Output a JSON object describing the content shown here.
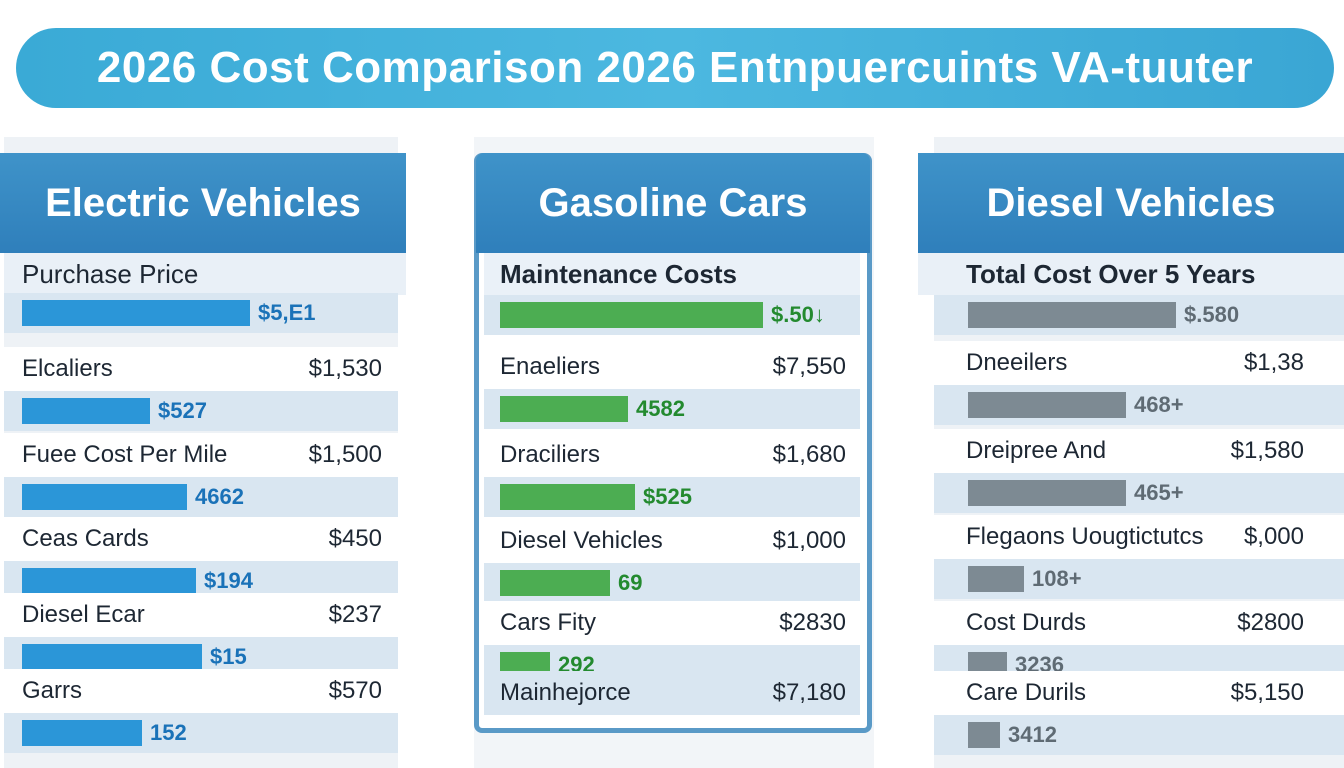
{
  "title": "2026 Cost Comparison 2026 Entnpuercuints VA-tuuter",
  "colors": {
    "ev_bar": "#2b96d8",
    "ev_text": "#1a72b8",
    "gas_bar": "#4cad52",
    "gas_text": "#238a2f",
    "diesel_bar": "#7d8a93",
    "diesel_text": "#5f6b74"
  },
  "chart_data": [
    {
      "type": "bar",
      "title": "Electric Vehicles",
      "subtitle": "Purchase Price",
      "top_bar": {
        "value_label": "$5,E1",
        "fraction": 0.8
      },
      "rows": [
        {
          "label": "Elcaliers",
          "amount": "$1,530",
          "bar_label": "$527",
          "fraction": 0.45
        },
        {
          "label": "Fuee Cost Per Mile",
          "amount": "$1,500",
          "bar_label": "4662",
          "fraction": 0.58
        },
        {
          "label": "Ceas Cards",
          "amount": "$450",
          "bar_label": "$194",
          "fraction": 0.61
        },
        {
          "label": "Diesel Ecar",
          "amount": "$237",
          "bar_label": "$15",
          "fraction": 0.63
        },
        {
          "label": "Garrs",
          "amount": "$570",
          "bar_label": "152",
          "fraction": 0.42
        }
      ]
    },
    {
      "type": "bar",
      "title": "Gasoline Cars",
      "subtitle": "Maintenance Costs",
      "top_bar": {
        "value_label": "$.50↓",
        "fraction": 0.74
      },
      "rows": [
        {
          "label": "Enaeliers",
          "amount": "$7,550",
          "bar_label": "4582",
          "fraction": 0.36
        },
        {
          "label": "Draciliers",
          "amount": "$1,680",
          "bar_label": "$525",
          "fraction": 0.38
        },
        {
          "label": "Diesel Vehicles",
          "amount": "$1,000",
          "bar_label": "69",
          "fraction": 0.31
        },
        {
          "label": "Cars Fity",
          "amount": "$2830",
          "bar_label": "292",
          "fraction": 0.14
        }
      ],
      "footer_row": {
        "label": "Mainhejorce",
        "amount": "$7,180"
      }
    },
    {
      "type": "bar",
      "title": "Diesel Vehicles",
      "subtitle": "Total Cost Over 5 Years",
      "top_bar": {
        "value_label": "$.580",
        "fraction": 0.59
      },
      "rows": [
        {
          "label": "Dneeilers",
          "amount": "$1,38",
          "bar_label": "468+",
          "fraction": 0.45
        },
        {
          "label": "Dreipree And",
          "amount": "$1,580",
          "bar_label": "465+",
          "fraction": 0.45
        },
        {
          "label": "Flegaons Uougtictutcs",
          "amount": "$,000",
          "bar_label": "108+",
          "fraction": 0.16
        },
        {
          "label": "Cost Durds",
          "amount": "$2800",
          "bar_label": "3236",
          "fraction": 0.11
        },
        {
          "label": "Care Durils",
          "amount": "$5,150",
          "bar_label": "3412",
          "fraction": 0.09
        }
      ]
    }
  ]
}
